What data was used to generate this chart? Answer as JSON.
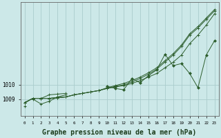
{
  "x": [
    0,
    1,
    2,
    3,
    4,
    5,
    6,
    7,
    8,
    9,
    10,
    11,
    12,
    13,
    14,
    15,
    16,
    17,
    18,
    19,
    20,
    21,
    22,
    23
  ],
  "line_smooth1": [
    1008.75,
    1009.05,
    1009.05,
    1009.05,
    1009.1,
    1009.15,
    1009.3,
    1009.4,
    1009.5,
    1009.6,
    1009.75,
    1009.85,
    1009.95,
    1010.1,
    1010.3,
    1010.55,
    1010.8,
    1011.2,
    1011.6,
    1012.1,
    1012.9,
    1013.5,
    1014.2,
    1015.0
  ],
  "line_smooth2": [
    1008.75,
    1009.05,
    1009.05,
    1009.05,
    1009.1,
    1009.15,
    1009.3,
    1009.4,
    1009.5,
    1009.6,
    1009.75,
    1009.9,
    1010.0,
    1010.2,
    1010.45,
    1010.75,
    1011.1,
    1011.6,
    1012.1,
    1012.7,
    1013.5,
    1014.0,
    1014.6,
    1015.2
  ],
  "line_smooth3": [
    1008.75,
    1009.05,
    1009.05,
    1009.05,
    1009.1,
    1009.15,
    1009.3,
    1009.4,
    1009.5,
    1009.6,
    1009.8,
    1009.95,
    1010.1,
    1010.3,
    1010.55,
    1010.85,
    1011.2,
    1011.7,
    1012.2,
    1012.8,
    1013.6,
    1014.1,
    1014.7,
    1015.3
  ],
  "line_zigzag": [
    null,
    null,
    null,
    null,
    null,
    null,
    null,
    null,
    null,
    null,
    1009.9,
    1009.75,
    1009.65,
    1010.45,
    1010.15,
    1010.65,
    1011.05,
    1012.15,
    1011.35,
    1011.5,
    1010.8,
    1009.8,
    1012.1,
    1013.1
  ],
  "line_early1": [
    1008.72,
    1009.05,
    1009.05,
    1009.3,
    1009.35,
    1009.4,
    null,
    null,
    null,
    null,
    null,
    null,
    null,
    null,
    null,
    null,
    null,
    null,
    null,
    null,
    null,
    null,
    null,
    null
  ],
  "line_early2": [
    null,
    1009.0,
    1008.65,
    1008.85,
    1009.15,
    1009.3,
    null,
    null,
    null,
    null,
    null,
    null,
    null,
    null,
    null,
    null,
    null,
    null,
    null,
    null,
    null,
    null,
    null,
    null
  ],
  "point_start": [
    1008.5,
    null,
    null,
    null,
    null,
    null,
    null,
    null,
    null,
    null,
    null,
    null,
    null,
    null,
    null,
    null,
    null,
    null,
    null,
    null,
    null,
    null,
    null,
    null
  ],
  "xlabel": "Graphe pression niveau de la mer (hPa)",
  "bg_color": "#cce8e8",
  "grid_color": "#aacccc",
  "line_color": "#2d5e2d",
  "ylim_min": 1007.8,
  "ylim_max": 1015.8,
  "yticks": [
    1009,
    1010
  ],
  "figwidth": 3.2,
  "figheight": 2.0,
  "dpi": 100
}
